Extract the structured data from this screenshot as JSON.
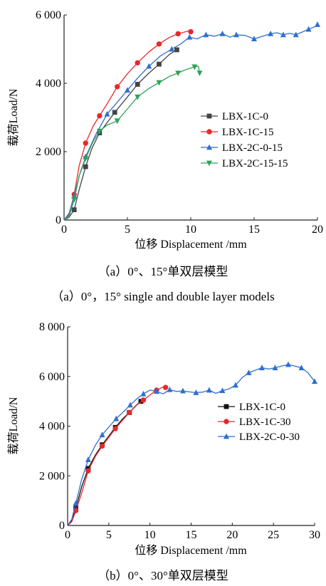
{
  "chart_data": [
    {
      "type": "line",
      "xlabel": "位移 Displacement /mm",
      "ylabel": "载荷Load/N",
      "xlim": [
        0,
        20
      ],
      "ylim": [
        0,
        6000
      ],
      "xticks": [
        "0",
        "5",
        "10",
        "15",
        "20"
      ],
      "yticks": [
        "0",
        "2 000",
        "4 000",
        "6 000"
      ],
      "grid": false,
      "legend": "center-right",
      "caption_cn": "（a）0°、15°单双层模型",
      "caption_en": "（a）0°，15° single and double layer models",
      "series": [
        {
          "name": "LBX-1C-0",
          "color": "#444444",
          "marker": "square",
          "x": [
            0,
            0.4,
            0.8,
            1.2,
            1.7,
            2.2,
            2.8,
            3.3,
            4.0,
            5.0,
            5.8,
            6.7,
            7.5,
            8.3,
            8.9
          ],
          "y": [
            0,
            80,
            300,
            900,
            1560,
            2100,
            2550,
            2800,
            3150,
            3600,
            3970,
            4300,
            4560,
            4840,
            4980
          ]
        },
        {
          "name": "LBX-1C-15",
          "color": "#e8282b",
          "marker": "circle",
          "x": [
            0,
            0.4,
            0.8,
            1.2,
            1.7,
            2.3,
            2.8,
            3.4,
            4.2,
            5.0,
            5.8,
            6.7,
            7.5,
            8.3,
            9.0,
            9.8,
            10.0
          ],
          "y": [
            0,
            150,
            750,
            1600,
            2250,
            2750,
            3050,
            3400,
            3900,
            4280,
            4600,
            4920,
            5150,
            5340,
            5450,
            5530,
            5510
          ]
        },
        {
          "name": "LBX-2C-0-15",
          "color": "#2f6fd0",
          "marker": "triangle",
          "x": [
            0,
            0.4,
            0.8,
            1.2,
            1.7,
            2.5,
            3.4,
            4.2,
            5.0,
            5.8,
            6.7,
            7.6,
            8.5,
            9.2,
            9.9,
            10.5,
            11.2,
            11.9,
            12.5,
            13.1,
            13.6,
            14.3,
            15.0,
            15.7,
            16.3,
            16.8,
            17.3,
            17.8,
            18.3,
            18.8,
            19.3,
            19.8,
            20.0
          ],
          "y": [
            0,
            200,
            700,
            1300,
            1850,
            2500,
            3100,
            3450,
            3800,
            4150,
            4500,
            4800,
            5000,
            5150,
            5350,
            5300,
            5420,
            5380,
            5450,
            5350,
            5420,
            5400,
            5300,
            5380,
            5450,
            5480,
            5420,
            5460,
            5420,
            5500,
            5580,
            5660,
            5720
          ]
        },
        {
          "name": "LBX-2C-15-15",
          "color": "#2fa35a",
          "marker": "triangle-down",
          "x": [
            0,
            0.4,
            0.8,
            1.2,
            1.7,
            2.3,
            2.8,
            3.4,
            4.2,
            5.0,
            5.8,
            6.7,
            7.5,
            8.3,
            9.0,
            9.6,
            10.3,
            10.6,
            10.7
          ],
          "y": [
            0,
            100,
            600,
            1300,
            1800,
            2300,
            2600,
            2780,
            2900,
            3250,
            3600,
            3850,
            4020,
            4200,
            4300,
            4400,
            4480,
            4500,
            4300
          ]
        }
      ]
    },
    {
      "type": "line",
      "xlabel": "位移 Displacement /mm",
      "ylabel": "载荷Load/N",
      "xlim": [
        0,
        30
      ],
      "ylim": [
        0,
        8000
      ],
      "xticks": [
        "0",
        "5",
        "10",
        "15",
        "20",
        "25",
        "30"
      ],
      "yticks": [
        "0",
        "2 000",
        "4 000",
        "6 000",
        "8 000"
      ],
      "grid": false,
      "legend": "center-right",
      "caption_cn": "（b）0°、30°单双层模型",
      "series": [
        {
          "name": "LBX-1C-0",
          "color": "#111111",
          "marker": "square",
          "x": [
            0,
            0.5,
            1.0,
            1.7,
            2.5,
            3.4,
            4.2,
            5.0,
            5.8,
            6.7,
            7.5,
            8.3,
            8.9
          ],
          "y": [
            0,
            200,
            700,
            1550,
            2300,
            2850,
            3250,
            3600,
            3950,
            4300,
            4550,
            4830,
            5000
          ]
        },
        {
          "name": "LBX-1C-30",
          "color": "#e8282b",
          "marker": "circle",
          "x": [
            0,
            0.5,
            1.0,
            1.7,
            2.5,
            3.4,
            4.2,
            5.0,
            5.8,
            6.7,
            7.5,
            8.4,
            9.2,
            10.0,
            10.8,
            11.6,
            11.9
          ],
          "y": [
            0,
            150,
            600,
            1300,
            2200,
            2800,
            3200,
            3550,
            3900,
            4250,
            4550,
            4850,
            5050,
            5250,
            5450,
            5580,
            5560
          ]
        },
        {
          "name": "LBX-2C-0-30",
          "color": "#2f6fd0",
          "marker": "triangle",
          "x": [
            0,
            0.5,
            1.0,
            1.7,
            2.5,
            3.4,
            4.2,
            5.1,
            5.9,
            6.7,
            7.6,
            8.4,
            9.2,
            10.0,
            10.8,
            11.6,
            12.4,
            13.2,
            14.0,
            14.8,
            15.6,
            16.4,
            17.2,
            18.0,
            18.8,
            19.6,
            20.4,
            21.2,
            22.0,
            22.8,
            23.6,
            24.4,
            25.2,
            26.0,
            26.8,
            27.6,
            28.4,
            29.2,
            30.0
          ],
          "y": [
            0,
            250,
            900,
            1850,
            2650,
            3250,
            3650,
            4000,
            4300,
            4550,
            4850,
            5100,
            5300,
            5450,
            5400,
            5300,
            5470,
            5400,
            5420,
            5380,
            5350,
            5370,
            5450,
            5320,
            5430,
            5500,
            5650,
            5950,
            6150,
            6250,
            6350,
            6300,
            6350,
            6420,
            6480,
            6420,
            6350,
            6150,
            5800
          ]
        }
      ]
    }
  ]
}
